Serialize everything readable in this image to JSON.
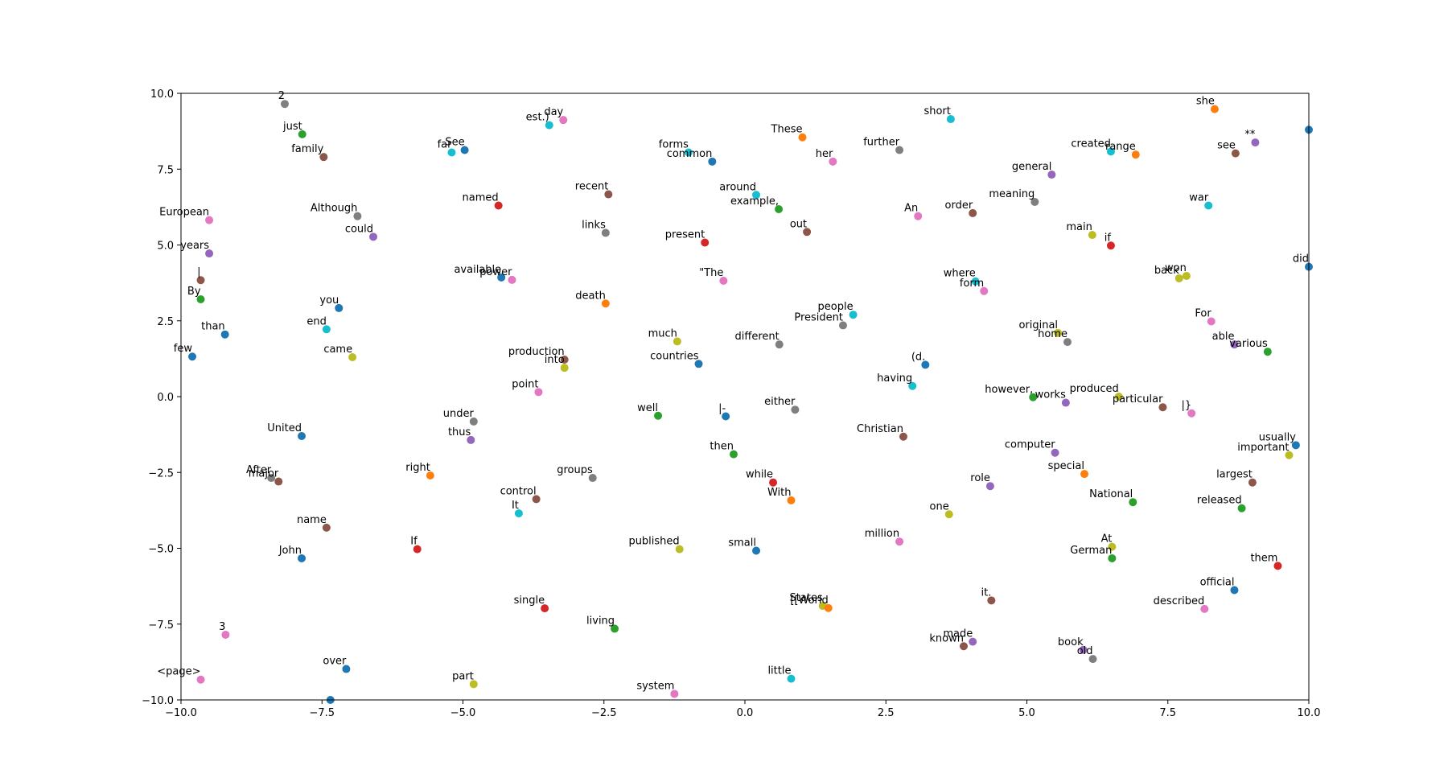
{
  "chart_data": {
    "type": "scatter",
    "title": "",
    "xlabel": "",
    "ylabel": "",
    "xlim": [
      -10.0,
      10.0
    ],
    "ylim": [
      -10.0,
      10.0
    ],
    "xticks": [
      -10.0,
      -7.5,
      -5.0,
      -2.5,
      0.0,
      2.5,
      5.0,
      7.5,
      10.0
    ],
    "yticks": [
      -10.0,
      -7.5,
      -5.0,
      -2.5,
      0.0,
      2.5,
      5.0,
      7.5,
      10.0
    ],
    "xtick_labels": [
      "−10.0",
      "−7.5",
      "−5.0",
      "−2.5",
      "0.0",
      "2.5",
      "5.0",
      "7.5",
      "10.0"
    ],
    "ytick_labels": [
      "−10.0",
      "−7.5",
      "−5.0",
      "−2.5",
      "0.0",
      "2.5",
      "5.0",
      "7.5",
      "10.0"
    ],
    "grid": false,
    "points": [
      {
        "label": "2",
        "x": -8.16,
        "y": 9.65,
        "color": "#7f7f7f"
      },
      {
        "label": "just",
        "x": -7.85,
        "y": 8.65,
        "color": "#2ca02c"
      },
      {
        "label": "family",
        "x": -7.47,
        "y": 7.9,
        "color": "#8c564b"
      },
      {
        "label": "European",
        "x": -9.5,
        "y": 5.82,
        "color": "#e377c2"
      },
      {
        "label": "Although",
        "x": -6.87,
        "y": 5.95,
        "color": "#7f7f7f"
      },
      {
        "label": "could",
        "x": -6.59,
        "y": 5.27,
        "color": "#9467bd"
      },
      {
        "label": "years",
        "x": -9.5,
        "y": 4.72,
        "color": "#9467bd"
      },
      {
        "label": "|",
        "x": -9.65,
        "y": 3.84,
        "color": "#8c564b"
      },
      {
        "label": "By",
        "x": -9.65,
        "y": 3.21,
        "color": "#2ca02c"
      },
      {
        "label": "you",
        "x": -7.2,
        "y": 2.92,
        "color": "#1f77b4"
      },
      {
        "label": "end",
        "x": -7.42,
        "y": 2.22,
        "color": "#17becf"
      },
      {
        "label": "than",
        "x": -9.22,
        "y": 2.05,
        "color": "#1f77b4"
      },
      {
        "label": "came",
        "x": -6.96,
        "y": 1.3,
        "color": "#bcbd22"
      },
      {
        "label": "few",
        "x": -9.8,
        "y": 1.32,
        "color": "#1f77b4"
      },
      {
        "label": "United",
        "x": -7.86,
        "y": -1.3,
        "color": "#1f77b4"
      },
      {
        "label": "After",
        "x": -8.4,
        "y": -2.68,
        "color": "#7f7f7f"
      },
      {
        "label": "major",
        "x": -8.27,
        "y": -2.8,
        "color": "#8c564b"
      },
      {
        "label": "name",
        "x": -7.42,
        "y": -4.32,
        "color": "#8c564b"
      },
      {
        "label": "John",
        "x": -7.86,
        "y": -5.33,
        "color": "#1f77b4"
      },
      {
        "label": "3",
        "x": -9.21,
        "y": -7.85,
        "color": "#e377c2"
      },
      {
        "label": "over",
        "x": -7.07,
        "y": -8.98,
        "color": "#1f77b4"
      },
      {
        "label": "<page>",
        "x": -9.65,
        "y": -9.33,
        "color": "#e377c2"
      },
      {
        "label": "est.)",
        "x": -3.47,
        "y": 8.95,
        "color": "#17becf"
      },
      {
        "label": "day",
        "x": -3.22,
        "y": 9.12,
        "color": "#e377c2"
      },
      {
        "label": "far",
        "x": -5.2,
        "y": 8.05,
        "color": "#17becf"
      },
      {
        "label": "See",
        "x": -4.97,
        "y": 8.13,
        "color": "#1f77b4"
      },
      {
        "label": "named",
        "x": -4.37,
        "y": 6.3,
        "color": "#d62728"
      },
      {
        "label": "recent",
        "x": -2.42,
        "y": 6.67,
        "color": "#8c564b"
      },
      {
        "label": "links",
        "x": -2.47,
        "y": 5.4,
        "color": "#7f7f7f"
      },
      {
        "label": "available",
        "x": -4.32,
        "y": 3.93,
        "color": "#1f77b4"
      },
      {
        "label": "power",
        "x": -4.13,
        "y": 3.85,
        "color": "#e377c2"
      },
      {
        "label": "death",
        "x": -2.47,
        "y": 3.07,
        "color": "#ff7f0e"
      },
      {
        "label": "production",
        "x": -3.2,
        "y": 1.22,
        "color": "#8c564b"
      },
      {
        "label": "into",
        "x": -3.2,
        "y": 0.95,
        "color": "#bcbd22"
      },
      {
        "label": "point",
        "x": -3.66,
        "y": 0.15,
        "color": "#e377c2"
      },
      {
        "label": "under",
        "x": -4.81,
        "y": -0.82,
        "color": "#7f7f7f"
      },
      {
        "label": "thus",
        "x": -4.86,
        "y": -1.43,
        "color": "#9467bd"
      },
      {
        "label": "right",
        "x": -5.58,
        "y": -2.6,
        "color": "#ff7f0e"
      },
      {
        "label": "groups",
        "x": -2.7,
        "y": -2.68,
        "color": "#7f7f7f"
      },
      {
        "label": "control",
        "x": -3.7,
        "y": -3.38,
        "color": "#8c564b"
      },
      {
        "label": "It",
        "x": -4.01,
        "y": -3.85,
        "color": "#17becf"
      },
      {
        "label": "If",
        "x": -5.81,
        "y": -5.03,
        "color": "#d62728"
      },
      {
        "label": "single",
        "x": -3.55,
        "y": -6.98,
        "color": "#d62728"
      },
      {
        "label": "living",
        "x": -2.31,
        "y": -7.65,
        "color": "#2ca02c"
      },
      {
        "label": "part",
        "x": -4.81,
        "y": -9.48,
        "color": "#bcbd22"
      },
      {
        "label": "forms",
        "x": -1.0,
        "y": 8.05,
        "color": "#17becf"
      },
      {
        "label": "common",
        "x": -0.58,
        "y": 7.75,
        "color": "#1f77b4"
      },
      {
        "label": "around",
        "x": 0.2,
        "y": 6.65,
        "color": "#17becf"
      },
      {
        "label": "example,",
        "x": 0.6,
        "y": 6.18,
        "color": "#2ca02c"
      },
      {
        "label": "These",
        "x": 1.02,
        "y": 8.55,
        "color": "#ff7f0e"
      },
      {
        "label": "her",
        "x": 1.56,
        "y": 7.75,
        "color": "#e377c2"
      },
      {
        "label": "present",
        "x": -0.71,
        "y": 5.08,
        "color": "#d62728"
      },
      {
        "label": "out",
        "x": 1.1,
        "y": 5.43,
        "color": "#8c564b"
      },
      {
        "label": "\"The",
        "x": -0.38,
        "y": 3.82,
        "color": "#e377c2"
      },
      {
        "label": "much",
        "x": -1.2,
        "y": 1.82,
        "color": "#bcbd22"
      },
      {
        "label": "different",
        "x": 0.61,
        "y": 1.72,
        "color": "#7f7f7f"
      },
      {
        "label": "countries",
        "x": -0.82,
        "y": 1.08,
        "color": "#1f77b4"
      },
      {
        "label": "well",
        "x": -1.54,
        "y": -0.63,
        "color": "#2ca02c"
      },
      {
        "label": "|-",
        "x": -0.34,
        "y": -0.65,
        "color": "#1f77b4"
      },
      {
        "label": "either",
        "x": 0.89,
        "y": -0.43,
        "color": "#7f7f7f"
      },
      {
        "label": "then",
        "x": -0.2,
        "y": -1.9,
        "color": "#2ca02c"
      },
      {
        "label": "while",
        "x": 0.5,
        "y": -2.83,
        "color": "#d62728"
      },
      {
        "label": "With",
        "x": 0.82,
        "y": -3.42,
        "color": "#ff7f0e"
      },
      {
        "label": "published",
        "x": -1.16,
        "y": -5.03,
        "color": "#bcbd22"
      },
      {
        "label": "small",
        "x": 0.2,
        "y": -5.08,
        "color": "#1f77b4"
      },
      {
        "label": "States",
        "x": 1.38,
        "y": -6.9,
        "color": "#bcbd22"
      },
      {
        "label": "[[World",
        "x": 1.48,
        "y": -6.97,
        "color": "#ff7f0e"
      },
      {
        "label": "little",
        "x": 0.82,
        "y": -9.3,
        "color": "#17becf"
      },
      {
        "label": "system",
        "x": -1.25,
        "y": -9.8,
        "color": "#e377c2"
      },
      {
        "label": "short",
        "x": 3.65,
        "y": 9.15,
        "color": "#17becf"
      },
      {
        "label": "further",
        "x": 2.74,
        "y": 8.13,
        "color": "#7f7f7f"
      },
      {
        "label": "An",
        "x": 3.07,
        "y": 5.95,
        "color": "#e377c2"
      },
      {
        "label": "order",
        "x": 4.04,
        "y": 6.05,
        "color": "#8c564b"
      },
      {
        "label": "meaning",
        "x": 5.14,
        "y": 6.42,
        "color": "#7f7f7f"
      },
      {
        "label": "general",
        "x": 5.44,
        "y": 7.32,
        "color": "#9467bd"
      },
      {
        "label": "where",
        "x": 4.09,
        "y": 3.8,
        "color": "#17becf"
      },
      {
        "label": "form",
        "x": 4.24,
        "y": 3.48,
        "color": "#e377c2"
      },
      {
        "label": "people",
        "x": 1.92,
        "y": 2.7,
        "color": "#17becf"
      },
      {
        "label": "President",
        "x": 1.74,
        "y": 2.35,
        "color": "#7f7f7f"
      },
      {
        "label": "(d.",
        "x": 3.2,
        "y": 1.05,
        "color": "#1f77b4"
      },
      {
        "label": "having",
        "x": 2.97,
        "y": 0.35,
        "color": "#17becf"
      },
      {
        "label": "Christian",
        "x": 2.81,
        "y": -1.32,
        "color": "#8c564b"
      },
      {
        "label": "role",
        "x": 4.35,
        "y": -2.95,
        "color": "#9467bd"
      },
      {
        "label": "one",
        "x": 3.62,
        "y": -3.88,
        "color": "#bcbd22"
      },
      {
        "label": "million",
        "x": 2.74,
        "y": -4.78,
        "color": "#e377c2"
      },
      {
        "label": "it.",
        "x": 4.37,
        "y": -6.72,
        "color": "#8c564b"
      },
      {
        "label": "known",
        "x": 3.88,
        "y": -8.23,
        "color": "#8c564b"
      },
      {
        "label": "made",
        "x": 4.04,
        "y": -8.08,
        "color": "#9467bd"
      },
      {
        "label": "original",
        "x": 5.55,
        "y": 2.1,
        "color": "#bcbd22"
      },
      {
        "label": "home",
        "x": 5.72,
        "y": 1.8,
        "color": "#7f7f7f"
      },
      {
        "label": "main",
        "x": 6.16,
        "y": 5.33,
        "color": "#bcbd22"
      },
      {
        "label": "if",
        "x": 6.49,
        "y": 4.98,
        "color": "#d62728"
      },
      {
        "label": "created",
        "x": 6.49,
        "y": 8.08,
        "color": "#17becf"
      },
      {
        "label": "range",
        "x": 6.93,
        "y": 7.98,
        "color": "#ff7f0e"
      },
      {
        "label": "however,",
        "x": 5.11,
        "y": -0.02,
        "color": "#2ca02c"
      },
      {
        "label": "works",
        "x": 5.69,
        "y": -0.2,
        "color": "#9467bd"
      },
      {
        "label": "produced",
        "x": 6.63,
        "y": 0.0,
        "color": "#bcbd22"
      },
      {
        "label": "particular",
        "x": 7.41,
        "y": -0.35,
        "color": "#8c564b"
      },
      {
        "label": "computer",
        "x": 5.5,
        "y": -1.85,
        "color": "#9467bd"
      },
      {
        "label": "special",
        "x": 6.02,
        "y": -2.55,
        "color": "#ff7f0e"
      },
      {
        "label": "National",
        "x": 6.88,
        "y": -3.48,
        "color": "#2ca02c"
      },
      {
        "label": "At",
        "x": 6.51,
        "y": -4.95,
        "color": "#bcbd22"
      },
      {
        "label": "German",
        "x": 6.51,
        "y": -5.33,
        "color": "#2ca02c"
      },
      {
        "label": "book",
        "x": 6.0,
        "y": -8.35,
        "color": "#9467bd"
      },
      {
        "label": "old",
        "x": 6.17,
        "y": -8.65,
        "color": "#7f7f7f"
      },
      {
        "label": "she",
        "x": 8.33,
        "y": 9.48,
        "color": "#ff7f0e"
      },
      {
        "label": "**",
        "x": 9.05,
        "y": 8.38,
        "color": "#9467bd"
      },
      {
        "label": "see",
        "x": 8.7,
        "y": 8.02,
        "color": "#8c564b"
      },
      {
        "label": "war",
        "x": 8.22,
        "y": 6.3,
        "color": "#17becf"
      },
      {
        "label": "back",
        "x": 7.7,
        "y": 3.9,
        "color": "#bcbd22"
      },
      {
        "label": "won",
        "x": 7.83,
        "y": 3.98,
        "color": "#bcbd22"
      },
      {
        "label": "did",
        "x": 10.0,
        "y": 4.28,
        "color": "#1f77b4"
      },
      {
        "label": "For",
        "x": 8.27,
        "y": 2.48,
        "color": "#e377c2"
      },
      {
        "label": "able",
        "x": 8.68,
        "y": 1.72,
        "color": "#9467bd"
      },
      {
        "label": "various",
        "x": 9.27,
        "y": 1.48,
        "color": "#2ca02c"
      },
      {
        "label": "|}",
        "x": 7.92,
        "y": -0.55,
        "color": "#e377c2"
      },
      {
        "label": "usually",
        "x": 9.77,
        "y": -1.6,
        "color": "#1f77b4"
      },
      {
        "label": "important",
        "x": 9.65,
        "y": -1.93,
        "color": "#bcbd22"
      },
      {
        "label": "largest",
        "x": 9.0,
        "y": -2.83,
        "color": "#8c564b"
      },
      {
        "label": "released",
        "x": 8.81,
        "y": -3.68,
        "color": "#2ca02c"
      },
      {
        "label": "them",
        "x": 9.45,
        "y": -5.58,
        "color": "#d62728"
      },
      {
        "label": "official",
        "x": 8.68,
        "y": -6.38,
        "color": "#1f77b4"
      },
      {
        "label": "described",
        "x": 8.15,
        "y": -7.0,
        "color": "#e377c2"
      }
    ],
    "edge_points": [
      {
        "x": 10.0,
        "y": 8.8,
        "color": "#1f77b4"
      },
      {
        "x": -7.35,
        "y": -10.0,
        "color": "#1f77b4"
      }
    ]
  }
}
